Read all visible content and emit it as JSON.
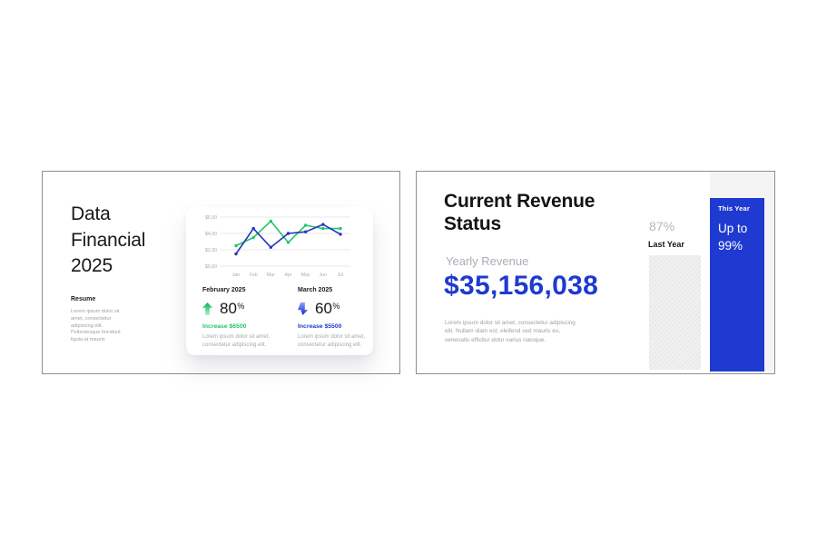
{
  "colors": {
    "accent_blue": "#1e3ad0",
    "line_blue": "#2336bd",
    "accent_green": "#27c468",
    "text_dark": "#17181a",
    "text_gray": "#9ba1a8",
    "band_gray": "#f4f4f5",
    "slide_border": "#8f8f8f"
  },
  "slide_left": {
    "title_lines": [
      "Data",
      "Financial",
      "2025"
    ],
    "resume_heading": "Resume",
    "resume_body": "Lorem ipsum dolor sit amet, consectetur adipiscing elit. Pellentesque tincidunt ligula at mauris",
    "stats": [
      {
        "month": "February 2025",
        "trend": "up",
        "percent": "80",
        "percent_sign": "%",
        "increase_label": "Increase $6500",
        "body": "Lorem ipsum dolor sit amet, consectetur adipiscing elit."
      },
      {
        "month": "March 2025",
        "trend": "down",
        "percent": "60",
        "percent_sign": "%",
        "increase_label": "Increase $5500",
        "body": "Lorem ipsum dolor sit amet, consectetur adipiscing elit."
      }
    ]
  },
  "slide_right": {
    "title_lines": [
      "Current Revenue",
      "Status"
    ],
    "yearly_revenue_label": "Yearly Revenue",
    "revenue_value": "$35,156,038",
    "body": "Lorem ipsum dolor sit amet, consectetur adipiscing elit. Nullam diam est, eleifend sed mauris eu, venenatis efficitur dolor varius natoque.",
    "last_year": {
      "percent": "87%",
      "label": "Last Year"
    },
    "this_year": {
      "label": "This Year",
      "value_line1": "Up to",
      "value_line2": "99%"
    }
  },
  "chart_data": [
    {
      "type": "line",
      "x": [
        "Jan",
        "Feb",
        "Mar",
        "Apr",
        "May",
        "Jun",
        "Jul"
      ],
      "series": [
        {
          "name": "green-series",
          "color": "#27c468",
          "values": [
            2.5,
            3.5,
            5.5,
            2.9,
            5.0,
            4.6,
            4.6
          ]
        },
        {
          "name": "blue-series",
          "color": "#2336bd",
          "values": [
            1.5,
            4.6,
            2.3,
            4.0,
            4.2,
            5.1,
            3.9
          ]
        }
      ],
      "ylim": [
        0,
        6
      ],
      "yticks": [
        {
          "value": 6,
          "label": "$6,00"
        },
        {
          "value": 4,
          "label": "$4,00"
        },
        {
          "value": 2,
          "label": "$2,00"
        },
        {
          "value": 0,
          "label": "$0,00"
        }
      ],
      "grid": "horizontal",
      "legend": "none"
    },
    {
      "type": "bar",
      "categories": [
        "Last Year",
        "This Year"
      ],
      "values": [
        87,
        99
      ],
      "value_labels": [
        "87%",
        "Up to 99%"
      ],
      "ylim": [
        0,
        100
      ],
      "legend": "none"
    }
  ]
}
